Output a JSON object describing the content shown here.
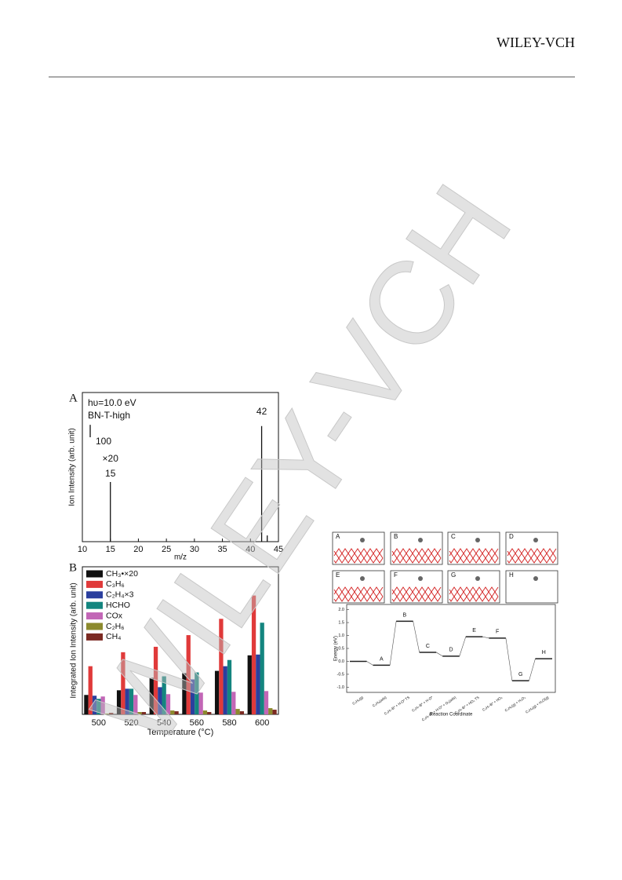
{
  "header": {
    "publisher": "WILEY-VCH"
  },
  "watermark": "WILEY-VCH",
  "chart_data": [
    {
      "type": "spectrum",
      "panel": "A",
      "xlabel": "m/z",
      "ylabel": "Ion Intensity (arb. unit)",
      "xlim": [
        10,
        45
      ],
      "xticks": [
        10,
        15,
        20,
        25,
        30,
        35,
        40,
        45
      ],
      "ylim": [
        0,
        1200
      ],
      "x": [
        15,
        42,
        43
      ],
      "values": [
        480,
        930,
        50
      ],
      "color": "#111111",
      "annotations": [
        "hυ=10.0 eV",
        "BN-T-high",
        "×20"
      ],
      "scale_bar": 100
    },
    {
      "type": "bar",
      "panel": "B",
      "xlabel": "Temperature (°C)",
      "ylabel": "Integrated Ion Intensity (arb. unit)",
      "categories": [
        "500",
        "520",
        "540",
        "560",
        "580",
        "600"
      ],
      "ylim": [
        0,
        190
      ],
      "legend": "top-left",
      "series": [
        {
          "name": "CH₃•×20",
          "color": "#111111",
          "values": [
            25,
            31,
            47,
            53,
            56,
            76
          ]
        },
        {
          "name": "C₃H₆",
          "color": "#e03a3a",
          "values": [
            62,
            80,
            87,
            102,
            123,
            153
          ]
        },
        {
          "name": "C₂H₄×3",
          "color": "#2b3f9e",
          "values": [
            24,
            33,
            35,
            45,
            62,
            77
          ]
        },
        {
          "name": "HCHO",
          "color": "#14857f",
          "values": [
            20,
            33,
            49,
            54,
            70,
            118
          ]
        },
        {
          "name": "COx",
          "color": "#c266b6",
          "values": [
            23,
            25,
            26,
            28,
            29,
            30
          ]
        },
        {
          "name": "C₂H₆",
          "color": "#8c8a2e",
          "values": [
            1,
            3,
            5,
            5,
            7,
            8
          ]
        },
        {
          "name": "CH₄",
          "color": "#7b2a22",
          "values": [
            2,
            3,
            4,
            3,
            4,
            6
          ]
        }
      ]
    },
    {
      "type": "energy",
      "xlabel": "Reaction Coordinate",
      "ylabel": "Energy (eV)",
      "categories": [
        "C₃H₈(g)",
        "C₃H₈(ads)",
        "C₃H₇-B* + H-O* TS",
        "C₃H₇-B* + H-O*",
        "C₃H₇-B* + H-O* + O₂(ads)",
        "C₃H₇-B* + HO₂ TS",
        "C₃H₇-B* + HO₂",
        "C₃H₆(g) + H₂O₂",
        "C₃H₆(g) + H₂O(g)"
      ],
      "level_names": [
        null,
        "A",
        "B",
        "C",
        "D",
        "E",
        "F",
        "G",
        "H"
      ],
      "values": [
        0,
        -0.15,
        1.55,
        0.35,
        0.2,
        0.95,
        0.9,
        -0.75,
        0.1
      ],
      "color": "#222222",
      "ylim": [
        -1.2,
        2.2
      ],
      "yticks": [
        {
          "value": 2,
          "label": "2.0"
        },
        1.5,
        {
          "value": 1,
          "label": "1.0"
        },
        0.5,
        {
          "value": 0,
          "label": "0.0"
        },
        -0.5,
        {
          "value": -1,
          "label": "-1.0"
        }
      ]
    }
  ]
}
